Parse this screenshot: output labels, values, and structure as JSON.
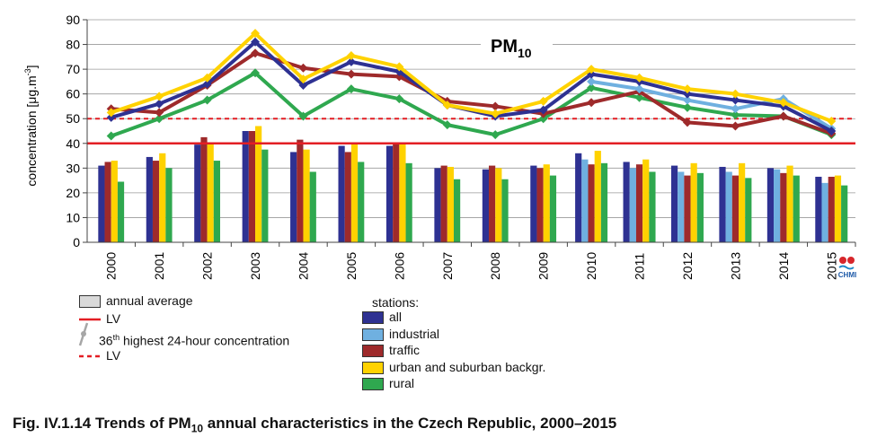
{
  "chart_data": {
    "type": "bar",
    "title_main": "PM",
    "title_sub": "10",
    "ylabel_main": "concentration [μg.m",
    "ylabel_sup": "-3",
    "ylabel_end": "]",
    "ylim": [
      0,
      90
    ],
    "yticks": [
      "0",
      "10",
      "20",
      "30",
      "40",
      "50",
      "60",
      "70",
      "80",
      "90"
    ],
    "categories": [
      "2000",
      "2001",
      "2002",
      "2003",
      "2004",
      "2005",
      "2006",
      "2007",
      "2008",
      "2009",
      "2010",
      "2011",
      "2012",
      "2013",
      "2014",
      "2015"
    ],
    "limit_lines": {
      "annual_lv": 40,
      "daily_lv": 50
    },
    "bar_series": [
      {
        "name": "all",
        "color": "#2e3192",
        "values": [
          31,
          34.5,
          39.5,
          45,
          36.5,
          39,
          39,
          30,
          29.5,
          31,
          36,
          32.5,
          31,
          30.5,
          30,
          26.5
        ]
      },
      {
        "name": "industrial",
        "color": "#6fb0e0",
        "values": [
          null,
          null,
          null,
          null,
          null,
          null,
          null,
          null,
          null,
          null,
          33.5,
          30,
          28.5,
          28.5,
          29.5,
          24
        ]
      },
      {
        "name": "traffic",
        "color": "#9e2a2b",
        "values": [
          32.5,
          33,
          42.5,
          45,
          41.5,
          36.5,
          40,
          31,
          31,
          30,
          31.5,
          31.5,
          27,
          27,
          28,
          26.5
        ]
      },
      {
        "name": "urban and suburban backgr.",
        "color": "#ffd200",
        "values": [
          33,
          36,
          40,
          47,
          37.5,
          40,
          40,
          30.5,
          30,
          31.5,
          37,
          33.5,
          32,
          32,
          31,
          27
        ]
      },
      {
        "name": "rural",
        "color": "#2fa84f",
        "values": [
          24.5,
          30,
          33,
          37.5,
          28.5,
          32.5,
          32,
          25.5,
          25.5,
          27,
          32,
          28.5,
          28,
          26,
          27,
          23
        ]
      }
    ],
    "line_series": [
      {
        "name": "all",
        "color": "#2e3192",
        "values": [
          50.5,
          56,
          64,
          81,
          63.5,
          73,
          69,
          55.5,
          51,
          53.5,
          68,
          65,
          60,
          57.5,
          55,
          45
        ]
      },
      {
        "name": "industrial",
        "color": "#6fb0e0",
        "values": [
          null,
          null,
          null,
          null,
          null,
          null,
          null,
          null,
          null,
          null,
          65,
          62,
          57.5,
          54,
          58,
          46
        ]
      },
      {
        "name": "traffic",
        "color": "#9e2a2b",
        "values": [
          54,
          52.5,
          63.5,
          76.5,
          70.5,
          68,
          67,
          57,
          55,
          52,
          56.5,
          61,
          48.5,
          47,
          51,
          44
        ]
      },
      {
        "name": "urban and suburban backgr.",
        "color": "#ffd200",
        "values": [
          52.5,
          59,
          66.5,
          84.5,
          66,
          75.5,
          71,
          55.5,
          52,
          57,
          70,
          66.5,
          62,
          60,
          56.5,
          49
        ]
      },
      {
        "name": "rural",
        "color": "#2fa84f",
        "values": [
          43,
          50,
          57.5,
          68.5,
          51,
          62,
          58,
          47.5,
          43.5,
          50,
          62.5,
          58.5,
          54.5,
          51.5,
          51,
          43.5
        ]
      }
    ]
  },
  "legend": {
    "annual_average": "annual average",
    "lv1": "LV",
    "highest_prefix": "36",
    "highest_sup": "th",
    "highest_rest": " highest 24-hour concentration",
    "lv2": "LV",
    "stations_title": "stations:"
  },
  "logo": {
    "text": "CHMI"
  },
  "caption": {
    "prefix": "Fig. IV.1.14  Trends of PM",
    "sub": "10",
    "suffix": " annual characteristics in the Czech Republic, 2000–2015"
  }
}
